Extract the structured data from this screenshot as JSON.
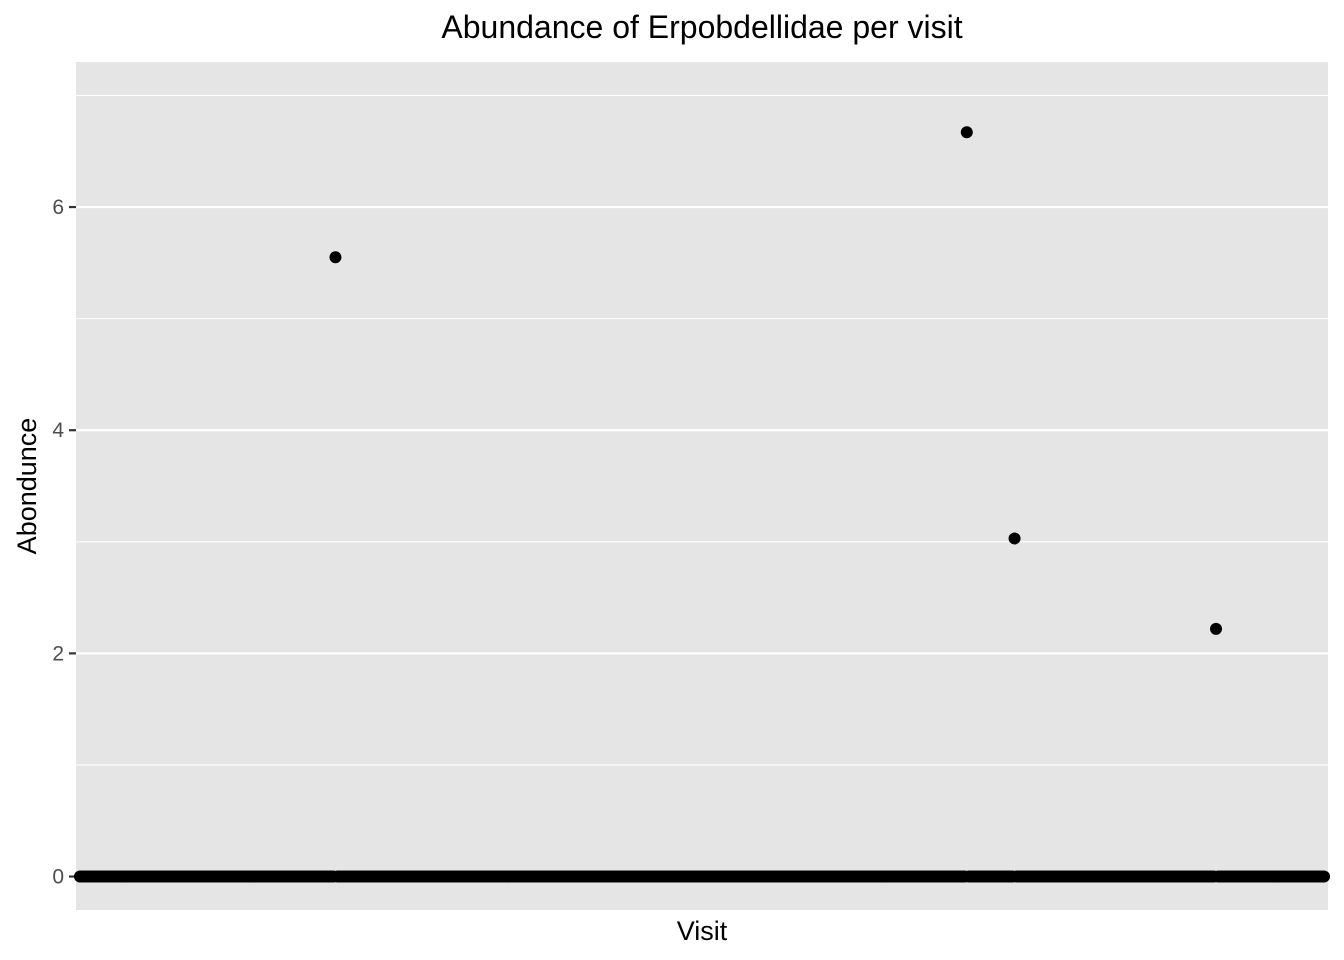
{
  "chart_data": {
    "type": "scatter",
    "title": "Abundance of Erpobdellidae per visit",
    "xlabel": "Visit",
    "ylabel": "Abondunce",
    "ylim": [
      -0.3,
      7.3
    ],
    "y_ticks": [
      0,
      2,
      4,
      6
    ],
    "y_minor_ticks": [
      1,
      3,
      5,
      7
    ],
    "x_ticks_shown": false,
    "n_visits": 600,
    "grid": true,
    "colors": {
      "panel": "#e5e5e5",
      "grid": "#ffffff",
      "point": "#000000",
      "tick_label": "#4d4d4d"
    },
    "nonzero_points": [
      {
        "visit": 123,
        "value": 5.55
      },
      {
        "visit": 427,
        "value": 6.67
      },
      {
        "visit": 450,
        "value": 3.03
      },
      {
        "visit": 547,
        "value": 2.22
      }
    ],
    "baseline_value": 0
  }
}
